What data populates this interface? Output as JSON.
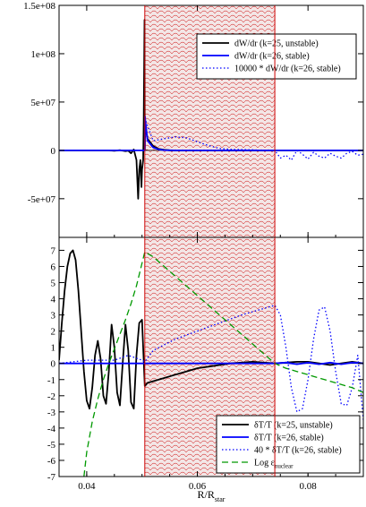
{
  "colors": {
    "unstable": "#000000",
    "stable": "#0000ff",
    "stable_scaled": "#0000ff",
    "nuclear": "#009900",
    "shade_line": "#cc0000",
    "shade_fill": "#f3e6e6"
  },
  "chart_data": [
    {
      "type": "line",
      "panel": "top",
      "xlim": [
        0.035,
        0.09
      ],
      "ylim": [
        -90000000,
        150000000
      ],
      "yticks": [
        {
          "value": 150000000,
          "label": "1.5e+08"
        },
        {
          "value": 100000000,
          "label": "1e+08"
        },
        {
          "value": 50000000,
          "label": "5e+07"
        },
        {
          "value": 0,
          "label": "0"
        },
        {
          "value": -50000000,
          "label": "-5e+07"
        }
      ],
      "shaded_region": [
        0.0505,
        0.074
      ],
      "legend_position": "top-right",
      "series": [
        {
          "name": "dW/dr (k=25, unstable)",
          "style": "solid",
          "color_key": "unstable",
          "x": [
            0.035,
            0.04,
            0.044,
            0.045,
            0.046,
            0.047,
            0.0475,
            0.048,
            0.0485,
            0.049,
            0.0493,
            0.0495,
            0.0497,
            0.0499,
            0.05,
            0.0502,
            0.0503,
            0.0504,
            0.05045,
            0.0505,
            0.0506,
            0.0508,
            0.051,
            0.052,
            0.053,
            0.054,
            0.055,
            0.056,
            0.058,
            0.06,
            0.07,
            0.09
          ],
          "y": [
            0,
            0,
            0,
            -400000,
            300000,
            -800000,
            -300000,
            -3000000,
            1000000,
            -10000000,
            -50000000,
            -20000000,
            -10000000,
            -38000000,
            -20000000,
            -10000000,
            30000000,
            100000000,
            135000000,
            0,
            28000000,
            18000000,
            12000000,
            4500000,
            1500000,
            500000,
            100000,
            0,
            0,
            0,
            0,
            0
          ]
        },
        {
          "name": "dW/dr (k=26, stable)",
          "style": "solid",
          "color_key": "stable",
          "x": [
            0.035,
            0.0505,
            0.05055,
            0.0506,
            0.051,
            0.052,
            0.053,
            0.054,
            0.056,
            0.058,
            0.06,
            0.07,
            0.09
          ],
          "y": [
            0,
            0,
            35000000,
            30000000,
            10000000,
            3000000,
            1000000,
            300000,
            0,
            0,
            0,
            0,
            0
          ]
        },
        {
          "name": "10000 * dW/dr (k=26, stable)",
          "style": "dotted",
          "color_key": "stable_scaled",
          "x": [
            0.035,
            0.045,
            0.0505,
            0.0507,
            0.052,
            0.054,
            0.056,
            0.058,
            0.06,
            0.062,
            0.064,
            0.066,
            0.068,
            0.07,
            0.072,
            0.074,
            0.075,
            0.076,
            0.077,
            0.078,
            0.079,
            0.08,
            0.081,
            0.082,
            0.083,
            0.084,
            0.085,
            0.086,
            0.087,
            0.088,
            0.089,
            0.09
          ],
          "y": [
            0,
            0,
            0,
            30000000,
            10000000,
            12000000,
            14000000,
            13000000,
            9000000,
            5000000,
            2000000,
            1000000,
            800000,
            500000,
            0,
            0,
            -8000000,
            -5000000,
            -10000000,
            0,
            -4000000,
            -9000000,
            -2000000,
            -6000000,
            -8000000,
            -3000000,
            -6000000,
            -8000000,
            -3000000,
            -1000000,
            -5000000,
            -4000000
          ]
        }
      ]
    },
    {
      "type": "line",
      "panel": "bottom",
      "xlim": [
        0.035,
        0.09
      ],
      "ylim": [
        -7,
        7.8
      ],
      "xlabel": "R/R",
      "xlabel_sub": "star",
      "xticks": [
        {
          "value": 0.04,
          "label": "0.04"
        },
        {
          "value": 0.06,
          "label": "0.06"
        },
        {
          "value": 0.08,
          "label": "0.08"
        }
      ],
      "yticks": [
        {
          "value": 7,
          "label": "7"
        },
        {
          "value": 6,
          "label": "6"
        },
        {
          "value": 5,
          "label": "5"
        },
        {
          "value": 4,
          "label": "4"
        },
        {
          "value": 3,
          "label": "3"
        },
        {
          "value": 2,
          "label": "2"
        },
        {
          "value": 1,
          "label": "1"
        },
        {
          "value": 0,
          "label": "0"
        },
        {
          "value": -1,
          "label": "-1"
        },
        {
          "value": -2,
          "label": "-2"
        },
        {
          "value": -3,
          "label": "-3"
        },
        {
          "value": -4,
          "label": "-4"
        },
        {
          "value": -5,
          "label": "-5"
        },
        {
          "value": -6,
          "label": "-6"
        },
        {
          "value": -7,
          "label": "-7"
        }
      ],
      "shaded_region": [
        0.0505,
        0.074
      ],
      "legend_position": "bottom-right",
      "series": [
        {
          "name": "δT/T (k=25, unstable)",
          "style": "solid",
          "color_key": "unstable",
          "x": [
            0.035,
            0.0355,
            0.036,
            0.0365,
            0.037,
            0.0375,
            0.038,
            0.0385,
            0.039,
            0.0395,
            0.04,
            0.0405,
            0.041,
            0.0415,
            0.042,
            0.0425,
            0.043,
            0.0435,
            0.044,
            0.0445,
            0.045,
            0.0455,
            0.046,
            0.0465,
            0.047,
            0.0475,
            0.048,
            0.0485,
            0.049,
            0.0495,
            0.05,
            0.0505,
            0.051,
            0.052,
            0.054,
            0.056,
            0.058,
            0.06,
            0.062,
            0.064,
            0.066,
            0.068,
            0.07,
            0.072,
            0.074,
            0.076,
            0.078,
            0.08,
            0.082,
            0.084,
            0.086,
            0.088,
            0.09
          ],
          "y": [
            0.2,
            2.5,
            4.5,
            6.0,
            6.8,
            7.0,
            6.4,
            4.5,
            2.0,
            -0.5,
            -2.3,
            -2.8,
            -1.5,
            0.5,
            1.4,
            0.3,
            -2.0,
            -2.5,
            -0.5,
            2.4,
            1.0,
            -1.8,
            -2.6,
            0.0,
            2.4,
            0.8,
            -2.4,
            -2.8,
            0.5,
            2.5,
            2.7,
            -1.4,
            -1.2,
            -1.1,
            -0.9,
            -0.7,
            -0.5,
            -0.3,
            -0.2,
            -0.1,
            0.0,
            0.05,
            0.1,
            0.05,
            0.0,
            0.05,
            0.1,
            0.1,
            0.0,
            -0.1,
            0.0,
            0.1,
            0.0
          ]
        },
        {
          "name": "δT/T (k=26, stable)",
          "style": "solid",
          "color_key": "stable",
          "x": [
            0.035,
            0.05,
            0.06,
            0.07,
            0.074,
            0.076,
            0.078,
            0.08,
            0.082,
            0.084,
            0.086,
            0.088,
            0.09
          ],
          "y": [
            0,
            0,
            0,
            0,
            0,
            0.05,
            -0.05,
            0.05,
            -0.05,
            0.05,
            -0.05,
            0.05,
            0
          ]
        },
        {
          "name": "40 * δT/T (k=26, stable)",
          "style": "dotted",
          "color_key": "stable_scaled",
          "x": [
            0.035,
            0.04,
            0.045,
            0.0475,
            0.05,
            0.0505,
            0.052,
            0.056,
            0.06,
            0.064,
            0.068,
            0.072,
            0.074,
            0.075,
            0.076,
            0.077,
            0.078,
            0.079,
            0.08,
            0.081,
            0.082,
            0.083,
            0.084,
            0.085,
            0.086,
            0.087,
            0.088,
            0.089,
            0.09
          ],
          "y": [
            0,
            0.2,
            0.2,
            0.5,
            0.2,
            0.1,
            0.8,
            1.5,
            2.0,
            2.5,
            3.0,
            3.4,
            3.6,
            3.0,
            1.0,
            -1.5,
            -3.0,
            -2.8,
            -1.0,
            1.5,
            3.3,
            3.5,
            2.0,
            -0.5,
            -2.5,
            -2.6,
            -1.5,
            0.5,
            -3.5
          ]
        },
        {
          "name": "Log ε",
          "name_sub": "nuclear",
          "style": "dashed",
          "color_key": "nuclear",
          "x": [
            0.0395,
            0.04,
            0.041,
            0.042,
            0.043,
            0.044,
            0.045,
            0.046,
            0.047,
            0.048,
            0.049,
            0.05,
            0.0505,
            0.052,
            0.054,
            0.056,
            0.058,
            0.06,
            0.062,
            0.064,
            0.066,
            0.068,
            0.07,
            0.072,
            0.074,
            0.076,
            0.078,
            0.08,
            0.082,
            0.084,
            0.086,
            0.088,
            0.09
          ],
          "y": [
            -7.0,
            -5.5,
            -3.6,
            -2.2,
            -1.0,
            0.0,
            0.9,
            1.8,
            2.7,
            3.7,
            4.8,
            6.2,
            6.9,
            6.6,
            6.0,
            5.4,
            4.8,
            4.2,
            3.6,
            3.0,
            2.4,
            1.8,
            1.2,
            0.6,
            0.0,
            -0.3,
            -0.5,
            -0.7,
            -0.9,
            -1.1,
            -1.3,
            -1.5,
            -1.8
          ]
        }
      ]
    }
  ]
}
